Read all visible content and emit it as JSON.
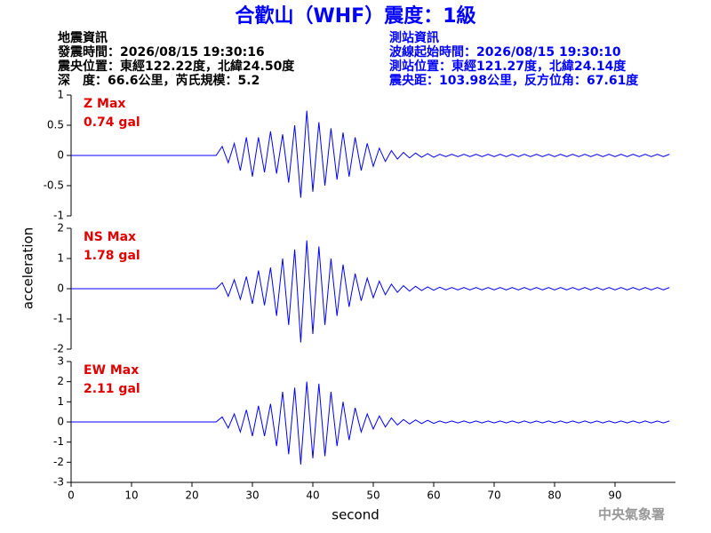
{
  "header": {
    "title": "合歡山（WHF）震度：1級",
    "left": [
      "地震資訊",
      "發震時間：2026/08/15 19:30:16",
      "震央位置：東經122.22度，北緯24.50度",
      "深　度：66.6公里，芮氏規模：5.2"
    ],
    "right": [
      "測站資訊",
      "波線起始時間：2026/08/15 19:30:10",
      "測站位置：東經121.27度，北緯24.14度",
      "震央距：103.98公里，反方位角：67.61度"
    ],
    "xlabel": "second",
    "ylabel": "acceleration",
    "footer": "中央氣象署"
  },
  "chart_data": [
    {
      "type": "line",
      "label": "Z Max",
      "max_label": "0.74 gal",
      "label_color": "#e00000",
      "xlim": [
        0,
        100
      ],
      "ylim": [
        -1,
        1
      ],
      "yticks": [
        -1,
        -0.5,
        0,
        0.5,
        1
      ],
      "x": [
        0,
        24,
        25,
        26,
        27,
        28,
        29,
        30,
        31,
        32,
        33,
        34,
        35,
        36,
        37,
        38,
        39,
        40,
        41,
        42,
        43,
        44,
        45,
        46,
        47,
        48,
        49,
        50,
        51,
        52,
        53,
        54,
        55,
        56,
        57,
        58,
        59,
        60,
        61,
        62,
        63,
        64,
        65,
        66,
        67,
        68,
        69,
        70,
        71,
        72,
        73,
        74,
        75,
        76,
        77,
        78,
        79,
        80,
        81,
        82,
        83,
        84,
        85,
        86,
        87,
        88,
        89,
        90,
        91,
        92,
        93,
        94,
        95,
        96,
        97,
        98,
        99
      ],
      "series": [
        {
          "color": "#0000ff",
          "values": [
            0,
            0,
            0.15,
            -0.12,
            0.2,
            -0.25,
            0.3,
            -0.35,
            0.3,
            -0.28,
            0.4,
            -0.3,
            0.35,
            -0.45,
            0.5,
            -0.7,
            0.74,
            -0.6,
            0.55,
            -0.5,
            0.45,
            -0.4,
            0.38,
            -0.35,
            0.3,
            -0.25,
            0.2,
            -0.18,
            0.12,
            -0.1,
            0.08,
            -0.06,
            0.05,
            -0.04,
            0.04,
            -0.03,
            0.03,
            -0.03,
            0.02,
            -0.02,
            0.02,
            -0.02,
            0.02,
            -0.02,
            0.02,
            -0.02,
            0.02,
            -0.02,
            0.02,
            -0.02,
            0.02,
            -0.02,
            0.02,
            -0.02,
            0.02,
            -0.02,
            0.02,
            -0.02,
            0.02,
            -0.02,
            0.02,
            -0.02,
            0.02,
            -0.02,
            0.02,
            -0.02,
            0.02,
            -0.02,
            0.02,
            -0.02,
            0.02,
            -0.02,
            0.02,
            -0.02,
            0.02,
            -0.02,
            0.02
          ]
        }
      ]
    },
    {
      "type": "line",
      "label": "NS Max",
      "max_label": "1.78 gal",
      "label_color": "#e00000",
      "xlim": [
        0,
        100
      ],
      "ylim": [
        -2,
        2
      ],
      "yticks": [
        -2,
        -1,
        0,
        1,
        2
      ],
      "x": [
        0,
        24,
        25,
        26,
        27,
        28,
        29,
        30,
        31,
        32,
        33,
        34,
        35,
        36,
        37,
        38,
        39,
        40,
        41,
        42,
        43,
        44,
        45,
        46,
        47,
        48,
        49,
        50,
        51,
        52,
        53,
        54,
        55,
        56,
        57,
        58,
        59,
        60,
        61,
        62,
        63,
        64,
        65,
        66,
        67,
        68,
        69,
        70,
        71,
        72,
        73,
        74,
        75,
        76,
        77,
        78,
        79,
        80,
        81,
        82,
        83,
        84,
        85,
        86,
        87,
        88,
        89,
        90,
        91,
        92,
        93,
        94,
        95,
        96,
        97,
        98,
        99
      ],
      "series": [
        {
          "color": "#0000ff",
          "values": [
            0,
            0,
            0.2,
            -0.25,
            0.3,
            -0.35,
            0.4,
            -0.5,
            0.6,
            -0.55,
            0.7,
            -0.9,
            1.0,
            -1.2,
            1.3,
            -1.78,
            1.6,
            -1.5,
            1.4,
            -1.2,
            1.0,
            -0.9,
            0.8,
            -0.6,
            0.5,
            -0.4,
            0.35,
            -0.3,
            0.25,
            -0.2,
            0.15,
            -0.12,
            0.1,
            -0.08,
            0.08,
            -0.06,
            0.06,
            -0.05,
            0.05,
            -0.04,
            0.04,
            -0.04,
            0.04,
            -0.04,
            0.04,
            -0.04,
            0.04,
            -0.04,
            0.04,
            -0.04,
            0.04,
            -0.04,
            0.04,
            -0.04,
            0.04,
            -0.04,
            0.04,
            -0.04,
            0.04,
            -0.04,
            0.04,
            -0.04,
            0.04,
            -0.04,
            0.04,
            -0.04,
            0.04,
            -0.04,
            0.04,
            -0.04,
            0.04,
            -0.04,
            0.04,
            -0.04,
            0.04,
            -0.04,
            0.04
          ]
        }
      ]
    },
    {
      "type": "line",
      "label": "EW Max",
      "max_label": "2.11 gal",
      "label_color": "#e00000",
      "xlim": [
        0,
        100
      ],
      "ylim": [
        -3,
        3
      ],
      "yticks": [
        -3,
        -2,
        -1,
        0,
        1,
        2,
        3
      ],
      "xticks": [
        0,
        10,
        20,
        30,
        40,
        50,
        60,
        70,
        80,
        90
      ],
      "x": [
        0,
        24,
        25,
        26,
        27,
        28,
        29,
        30,
        31,
        32,
        33,
        34,
        35,
        36,
        37,
        38,
        39,
        40,
        41,
        42,
        43,
        44,
        45,
        46,
        47,
        48,
        49,
        50,
        51,
        52,
        53,
        54,
        55,
        56,
        57,
        58,
        59,
        60,
        61,
        62,
        63,
        64,
        65,
        66,
        67,
        68,
        69,
        70,
        71,
        72,
        73,
        74,
        75,
        76,
        77,
        78,
        79,
        80,
        81,
        82,
        83,
        84,
        85,
        86,
        87,
        88,
        89,
        90,
        91,
        92,
        93,
        94,
        95,
        96,
        97,
        98,
        99
      ],
      "series": [
        {
          "color": "#0000ff",
          "values": [
            0,
            0,
            0.25,
            -0.3,
            0.4,
            -0.5,
            0.6,
            -0.7,
            0.8,
            -0.7,
            0.9,
            -1.2,
            1.5,
            -1.6,
            1.7,
            -2.11,
            2.0,
            -1.8,
            1.9,
            -1.7,
            1.5,
            -1.2,
            1.0,
            -0.9,
            0.7,
            -0.5,
            0.4,
            -0.35,
            0.3,
            -0.25,
            0.2,
            -0.15,
            0.12,
            -0.1,
            0.1,
            -0.08,
            0.08,
            -0.07,
            0.05,
            -0.05,
            0.05,
            -0.05,
            0.05,
            -0.05,
            0.05,
            -0.05,
            0.05,
            -0.05,
            0.05,
            -0.05,
            0.05,
            -0.05,
            0.05,
            -0.05,
            0.05,
            -0.05,
            0.05,
            -0.05,
            0.05,
            -0.05,
            0.05,
            -0.05,
            0.05,
            -0.05,
            0.05,
            -0.05,
            0.05,
            -0.05,
            0.05,
            -0.05,
            0.05,
            -0.05,
            0.05,
            -0.05,
            0.05,
            -0.05,
            0.05
          ]
        }
      ]
    }
  ]
}
